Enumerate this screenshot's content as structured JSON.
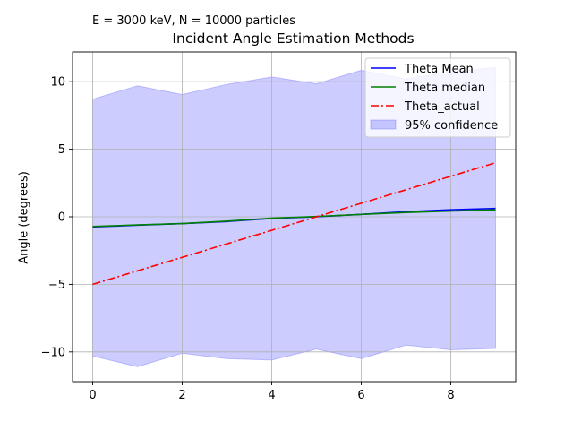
{
  "chart_data": {
    "type": "line",
    "suptitle": "E = 3000 keV, N = 10000 particles",
    "title": "Incident Angle Estimation Methods",
    "xlabel": "",
    "ylabel": "Angle (degrees)",
    "xlim": [
      -0.45,
      9.45
    ],
    "ylim": [
      -12.2,
      12.2
    ],
    "xticks": [
      0,
      2,
      4,
      6,
      8
    ],
    "yticks": [
      -10,
      -5,
      0,
      5,
      10
    ],
    "grid": true,
    "legend_position": "upper right",
    "x": [
      0,
      1,
      2,
      3,
      4,
      5,
      6,
      7,
      8,
      9
    ],
    "series": [
      {
        "name": "Theta Mean",
        "style": "solid",
        "color": "#0000ff",
        "values": [
          -0.75,
          -0.62,
          -0.5,
          -0.35,
          -0.12,
          0.0,
          0.18,
          0.38,
          0.52,
          0.62
        ]
      },
      {
        "name": "Theta median",
        "style": "solid",
        "color": "#008000",
        "values": [
          -0.72,
          -0.6,
          -0.5,
          -0.32,
          -0.1,
          0.02,
          0.18,
          0.32,
          0.43,
          0.52
        ]
      },
      {
        "name": "Theta_actual",
        "style": "dashdot",
        "color": "#ff0000",
        "values": [
          -5,
          -4,
          -3,
          -2,
          -1,
          0,
          1,
          2,
          3,
          4
        ]
      }
    ],
    "band": {
      "name": "95% confidence",
      "color": "#0000ff",
      "upper": [
        8.7,
        9.7,
        9.05,
        9.8,
        10.35,
        9.85,
        10.85,
        10.2,
        10.75,
        11.05
      ],
      "lower": [
        -10.3,
        -11.1,
        -10.1,
        -10.5,
        -10.6,
        -9.8,
        -10.5,
        -9.5,
        -9.85,
        -9.75
      ]
    }
  }
}
